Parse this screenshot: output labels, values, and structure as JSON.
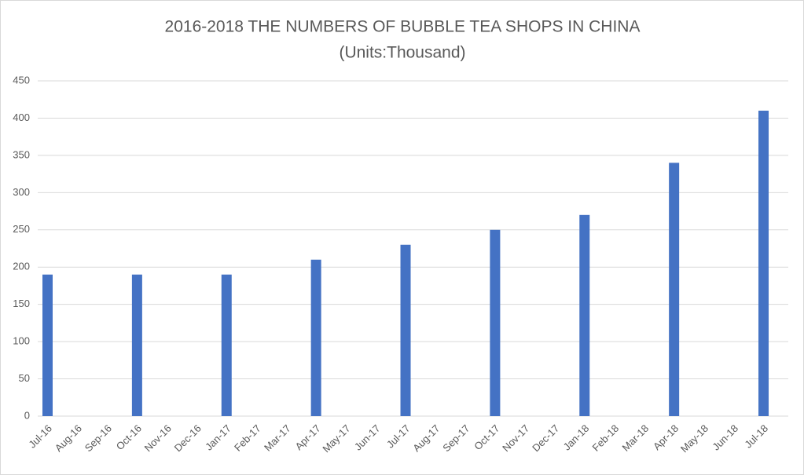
{
  "chart_data": {
    "type": "bar",
    "title": "2016-2018 THE NUMBERS OF BUBBLE TEA SHOPS IN CHINA",
    "subtitle": "(Units:Thousand)",
    "categories": [
      "Jul-16",
      "Aug-16",
      "Sep-16",
      "Oct-16",
      "Nov-16",
      "Dec-16",
      "Jan-17",
      "Feb-17",
      "Mar-17",
      "Apr-17",
      "May-17",
      "Jun-17",
      "Jul-17",
      "Aug-17",
      "Sep-17",
      "Oct-17",
      "Nov-17",
      "Dec-17",
      "Jan-18",
      "Feb-18",
      "Mar-18",
      "Apr-18",
      "May-18",
      "Jun-18",
      "Jul-18"
    ],
    "values": [
      190,
      null,
      null,
      190,
      null,
      null,
      190,
      null,
      null,
      210,
      null,
      null,
      230,
      null,
      null,
      250,
      null,
      null,
      270,
      null,
      null,
      340,
      null,
      null,
      410
    ],
    "color": "#4472c4",
    "ylim": [
      0,
      450
    ],
    "yticks": [
      0,
      50,
      100,
      150,
      200,
      250,
      300,
      350,
      400,
      450
    ],
    "grid": true
  }
}
